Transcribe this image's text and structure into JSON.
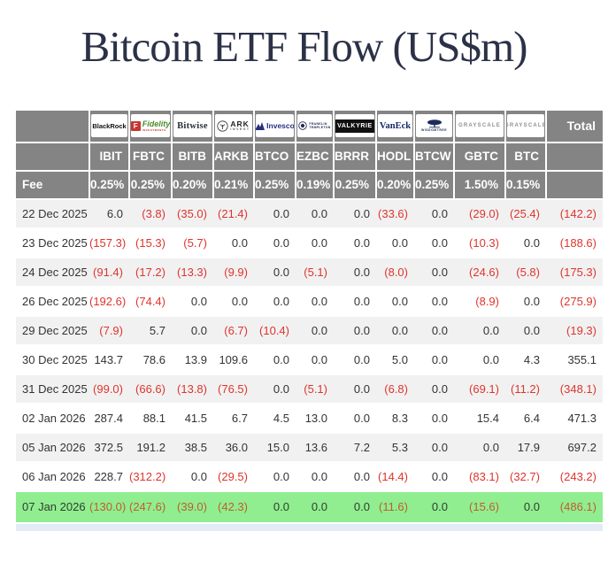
{
  "title": "Bitcoin ETF Flow (US$m)",
  "labels": {
    "fee": "Fee",
    "total": "Total"
  },
  "issuers": [
    {
      "name": "BlackRock",
      "logo": {
        "type": "blackrock",
        "text": "BlackRock"
      }
    },
    {
      "name": "Fidelity",
      "logo": {
        "type": "fidelity",
        "badge": "F",
        "text": "Fidelity",
        "sub": "INVESTMENTS"
      }
    },
    {
      "name": "Bitwise",
      "logo": {
        "type": "bitwise",
        "text": "Bitwise"
      }
    },
    {
      "name": "ARK Invest",
      "logo": {
        "type": "ark",
        "text": "ARK",
        "sub": "INVEST"
      }
    },
    {
      "name": "Invesco",
      "logo": {
        "type": "invesco",
        "text": "Invesco"
      }
    },
    {
      "name": "Franklin Templeton",
      "logo": {
        "type": "franklin",
        "text": "FRANKLIN",
        "sub": "TEMPLETON"
      }
    },
    {
      "name": "Valkyrie",
      "logo": {
        "type": "valkyrie",
        "text": "VALKYRIE"
      }
    },
    {
      "name": "VanEck",
      "logo": {
        "type": "vaneck",
        "text": "VanEck"
      }
    },
    {
      "name": "WisdomTree",
      "logo": {
        "type": "wisdomtree",
        "text": "WISDOMTREE"
      }
    },
    {
      "name": "Grayscale",
      "logo": {
        "type": "grayscale",
        "text": "GRAYSCALE"
      }
    },
    {
      "name": "Grayscale",
      "logo": {
        "type": "grayscale",
        "text": "GRAYSCALE"
      }
    }
  ],
  "chart_data": {
    "type": "table",
    "title": "Bitcoin ETF Flow (US$m)",
    "columns": [
      "IBIT",
      "FBTC",
      "BITB",
      "ARKB",
      "BTCO",
      "EZBC",
      "BRRR",
      "HODL",
      "BTCW",
      "GBTC",
      "BTC",
      "Total"
    ],
    "fees": [
      "0.25%",
      "0.25%",
      "0.20%",
      "0.21%",
      "0.25%",
      "0.19%",
      "0.25%",
      "0.20%",
      "0.25%",
      "1.50%",
      "0.15%"
    ],
    "negative_format": "parentheses",
    "rows": [
      {
        "date": "22 Dec 2025",
        "values": [
          6.0,
          -3.8,
          -35.0,
          -21.4,
          0.0,
          0.0,
          0.0,
          -33.6,
          0.0,
          -29.0,
          -25.4,
          -142.2
        ],
        "highlight": false
      },
      {
        "date": "23 Dec 2025",
        "values": [
          -157.3,
          -15.3,
          -5.7,
          0.0,
          0.0,
          0.0,
          0.0,
          0.0,
          0.0,
          -10.3,
          0.0,
          -188.6
        ],
        "highlight": false
      },
      {
        "date": "24 Dec 2025",
        "values": [
          -91.4,
          -17.2,
          -13.3,
          -9.9,
          0.0,
          -5.1,
          0.0,
          -8.0,
          0.0,
          -24.6,
          -5.8,
          -175.3
        ],
        "highlight": false
      },
      {
        "date": "26 Dec 2025",
        "values": [
          -192.6,
          -74.4,
          0.0,
          0.0,
          0.0,
          0.0,
          0.0,
          0.0,
          0.0,
          -8.9,
          0.0,
          -275.9
        ],
        "highlight": false
      },
      {
        "date": "29 Dec 2025",
        "values": [
          -7.9,
          5.7,
          0.0,
          -6.7,
          -10.4,
          0.0,
          0.0,
          0.0,
          0.0,
          0.0,
          0.0,
          -19.3
        ],
        "highlight": false
      },
      {
        "date": "30 Dec 2025",
        "values": [
          143.7,
          78.6,
          13.9,
          109.6,
          0.0,
          0.0,
          0.0,
          5.0,
          0.0,
          0.0,
          4.3,
          355.1
        ],
        "highlight": false
      },
      {
        "date": "31 Dec 2025",
        "values": [
          -99.0,
          -66.6,
          -13.8,
          -76.5,
          0.0,
          -5.1,
          0.0,
          -6.8,
          0.0,
          -69.1,
          -11.2,
          -348.1
        ],
        "highlight": false
      },
      {
        "date": "02 Jan 2026",
        "values": [
          287.4,
          88.1,
          41.5,
          6.7,
          4.5,
          13.0,
          0.0,
          8.3,
          0.0,
          15.4,
          6.4,
          471.3
        ],
        "highlight": false
      },
      {
        "date": "05 Jan 2026",
        "values": [
          372.5,
          191.2,
          38.5,
          36.0,
          15.0,
          13.6,
          7.2,
          5.3,
          0.0,
          0.0,
          17.9,
          697.2
        ],
        "highlight": false
      },
      {
        "date": "06 Jan 2026",
        "values": [
          228.7,
          -312.2,
          0.0,
          -29.5,
          0.0,
          0.0,
          0.0,
          -14.4,
          0.0,
          -83.1,
          -32.7,
          -243.2
        ],
        "highlight": false
      },
      {
        "date": "07 Jan 2026",
        "values": [
          -130.0,
          -247.6,
          -39.0,
          -42.3,
          0.0,
          0.0,
          0.0,
          -11.6,
          0.0,
          -15.6,
          0.0,
          -486.1
        ],
        "highlight": true
      }
    ]
  },
  "colors": {
    "title_navy": "#2b3147",
    "header_gray": "#848484",
    "row_alt_gray": "#f1f1f2",
    "highlight_green": "#90ee90",
    "negative_red": "#de352c",
    "negative_on_green": "#bf5e2c",
    "partial_row_blue": "#e3ecf5",
    "fidelity_red": "#c7362f",
    "fidelity_green": "#4c8c2b",
    "invesco_blue": "#24317e",
    "vaneck_navy": "#19276b",
    "grayscale_gray": "#8f8f8f"
  }
}
